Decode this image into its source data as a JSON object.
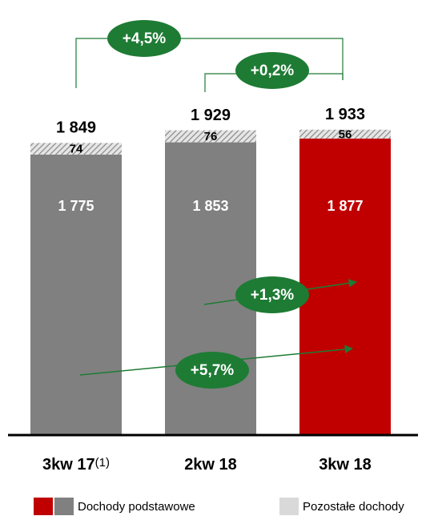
{
  "chart_data": {
    "type": "bar",
    "stacked": true,
    "categories": [
      "3kw 17",
      "2kw 18",
      "3kw 18"
    ],
    "category_note": "(1)",
    "series": [
      {
        "name": "Dochody podstawowe",
        "colors": [
          "#808080",
          "#808080",
          "#c00000"
        ],
        "values": [
          1775,
          1853,
          1877
        ],
        "value_labels": [
          "1 775",
          "1 853",
          "1 877"
        ]
      },
      {
        "name": "Pozostałe dochody",
        "color": "#d9d9d9",
        "pattern": "hatch",
        "values": [
          74,
          76,
          56
        ]
      }
    ],
    "totals": [
      1849,
      1929,
      1933
    ],
    "total_labels": [
      "1 849",
      "1 929",
      "1 933"
    ],
    "annotations": [
      "+4,5%",
      "+0,2%",
      "+1,3%",
      "+5,7%"
    ]
  }
}
